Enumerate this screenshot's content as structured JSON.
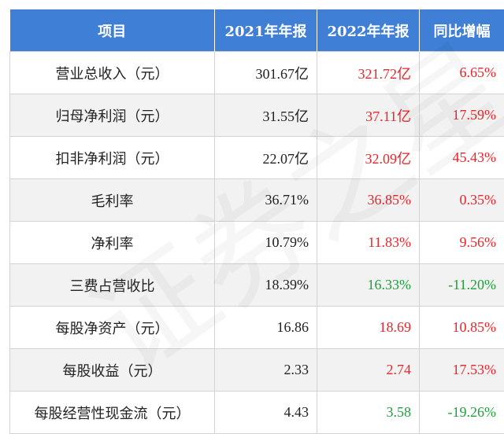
{
  "header": {
    "col_item": "项目",
    "col_2021": "2021年年报",
    "col_2022": "2022年年报",
    "col_yoy": "同比增幅"
  },
  "rows": [
    {
      "name": "营业总收入（元）",
      "v2021": "301.67亿",
      "v2022": "321.72亿",
      "yoy": "6.65%",
      "c2022": "red",
      "cyoy": "red"
    },
    {
      "name": "归母净利润（元）",
      "v2021": "31.55亿",
      "v2022": "37.11亿",
      "yoy": "17.59%",
      "c2022": "red",
      "cyoy": "red"
    },
    {
      "name": "扣非净利润（元）",
      "v2021": "22.07亿",
      "v2022": "32.09亿",
      "yoy": "45.43%",
      "c2022": "red",
      "cyoy": "red"
    },
    {
      "name": "毛利率",
      "v2021": "36.71%",
      "v2022": "36.85%",
      "yoy": "0.35%",
      "c2022": "red",
      "cyoy": "red"
    },
    {
      "name": "净利率",
      "v2021": "10.79%",
      "v2022": "11.83%",
      "yoy": "9.56%",
      "c2022": "red",
      "cyoy": "red"
    },
    {
      "name": "三费占营收比",
      "v2021": "18.39%",
      "v2022": "16.33%",
      "yoy": "-11.20%",
      "c2022": "green",
      "cyoy": "green"
    },
    {
      "name": "每股净资产（元）",
      "v2021": "16.86",
      "v2022": "18.69",
      "yoy": "10.85%",
      "c2022": "red",
      "cyoy": "red"
    },
    {
      "name": "每股收益（元）",
      "v2021": "2.33",
      "v2022": "2.74",
      "yoy": "17.53%",
      "c2022": "red",
      "cyoy": "red"
    },
    {
      "name": "每股经营性现金流（元）",
      "v2021": "4.43",
      "v2022": "3.58",
      "yoy": "-19.26%",
      "c2022": "green",
      "cyoy": "green"
    }
  ],
  "colors": {
    "header_bg": "#3f7fd6",
    "increase": "#e8262b",
    "decrease": "#1f9e3b"
  },
  "watermark": {
    "text": "证券之星"
  }
}
